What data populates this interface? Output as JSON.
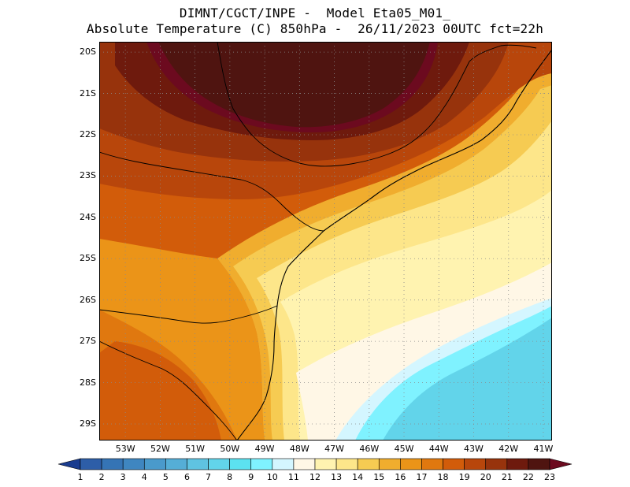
{
  "title": {
    "line1": "DIMNT/CGCT/INPE -  Model Eta05_M01_",
    "line2": "Absolute Temperature (C) 850hPa -  26/11/2023 00UTC fct=22h"
  },
  "map": {
    "lat_labels": [
      "20S",
      "21S",
      "22S",
      "23S",
      "24S",
      "25S",
      "26S",
      "27S",
      "28S",
      "29S"
    ],
    "lon_labels": [
      "53W",
      "52W",
      "51W",
      "50W",
      "49W",
      "48W",
      "47W",
      "46W",
      "45W",
      "44W",
      "43W",
      "42W",
      "41W"
    ],
    "extent": {
      "lon_min": -53.75,
      "lon_max": -40.75,
      "lat_max": -19.75,
      "lat_min": -29.4
    },
    "gridlines": "dotted",
    "field": "temperature at 850hPa (C)"
  },
  "colorbar": {
    "labels": [
      "1",
      "2",
      "3",
      "4",
      "5",
      "6",
      "7",
      "8",
      "9",
      "10",
      "11",
      "12",
      "13",
      "14",
      "15",
      "16",
      "17",
      "18",
      "19",
      "20",
      "21",
      "22",
      "23"
    ],
    "colors": [
      "#1a3c8f",
      "#2d5ea8",
      "#3574b5",
      "#3f86c0",
      "#4a9acb",
      "#55aed6",
      "#5fc3e1",
      "#62d4ea",
      "#5ce2f0",
      "#7ff2ff",
      "#d4f6ff",
      "#fff7e6",
      "#fff3b0",
      "#fde68a",
      "#f6cb52",
      "#f0ad2e",
      "#eb9418",
      "#e0780f",
      "#d25c0a",
      "#b8460b",
      "#97330c",
      "#6e1a0d",
      "#4f1410",
      "#6c0a1f"
    ]
  }
}
